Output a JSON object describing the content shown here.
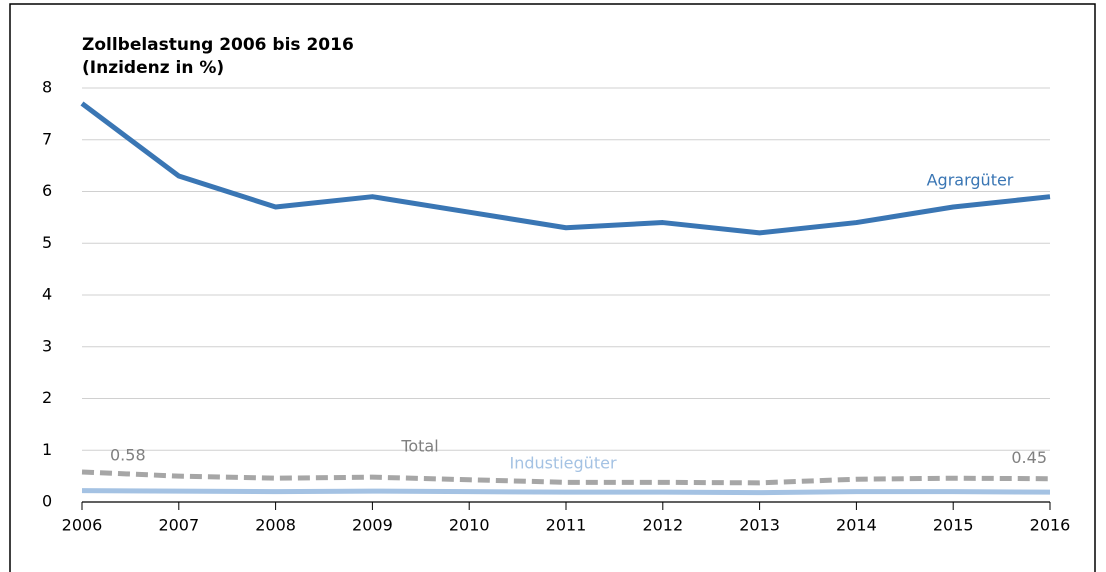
{
  "chart_data": {
    "type": "line",
    "title": "Zollbelastung 2006 bis 2016",
    "subtitle": "(Inzidenz in %)",
    "x": [
      2006,
      2007,
      2008,
      2009,
      2010,
      2011,
      2012,
      2013,
      2014,
      2015,
      2016
    ],
    "series": [
      {
        "name": "Agrargüter",
        "color": "#3a76b4",
        "values": [
          7.7,
          6.3,
          5.7,
          5.9,
          5.6,
          5.3,
          5.4,
          5.2,
          5.4,
          5.7,
          5.9
        ]
      },
      {
        "name": "Total",
        "color": "#a6a6a6",
        "dashed": true,
        "values": [
          0.58,
          0.5,
          0.46,
          0.48,
          0.43,
          0.38,
          0.38,
          0.37,
          0.44,
          0.46,
          0.45
        ]
      },
      {
        "name": "Industiegüter",
        "color": "#a4c2e3",
        "values": [
          0.22,
          0.21,
          0.2,
          0.21,
          0.2,
          0.19,
          0.19,
          0.18,
          0.2,
          0.2,
          0.19
        ]
      }
    ],
    "xlim": [
      2006,
      2016
    ],
    "xticks": [
      2006,
      2007,
      2008,
      2009,
      2010,
      2011,
      2012,
      2013,
      2014,
      2015,
      2016
    ],
    "ylim": [
      0,
      8
    ],
    "yticks": [
      0,
      1,
      2,
      3,
      4,
      5,
      6,
      7,
      8
    ],
    "grid": true
  }
}
